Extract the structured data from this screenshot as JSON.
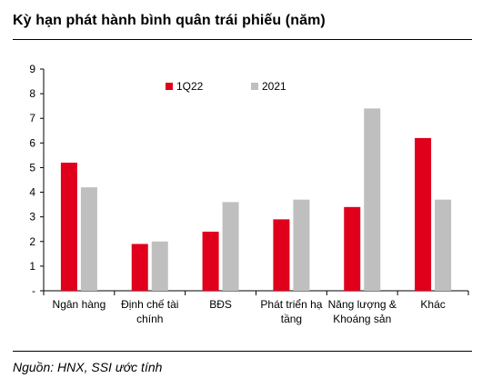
{
  "title": "Kỳ hạn phát hành bình quân trái phiếu (năm)",
  "source": "Nguồn: HNX, SSI ước tính",
  "chart_data": {
    "type": "bar",
    "categories": [
      [
        "Ngân hàng"
      ],
      [
        "Định chế tài",
        "chính"
      ],
      [
        "BĐS"
      ],
      [
        "Phát triển hạ",
        "tầng"
      ],
      [
        "Năng lượng &",
        "Khoáng sản"
      ],
      [
        "Khác"
      ]
    ],
    "series": [
      {
        "name": "1Q22",
        "color": "#e0001b",
        "values": [
          5.2,
          1.9,
          2.4,
          2.9,
          3.4,
          6.2
        ]
      },
      {
        "name": "2021",
        "color": "#bfbfbf",
        "values": [
          4.2,
          2.0,
          3.6,
          3.7,
          7.4,
          3.7
        ]
      }
    ],
    "ylim": [
      0,
      9
    ],
    "yticks": [
      "-",
      "1",
      "2",
      "3",
      "4",
      "5",
      "6",
      "7",
      "8",
      "9"
    ],
    "grid": false,
    "legend": "top-center"
  }
}
